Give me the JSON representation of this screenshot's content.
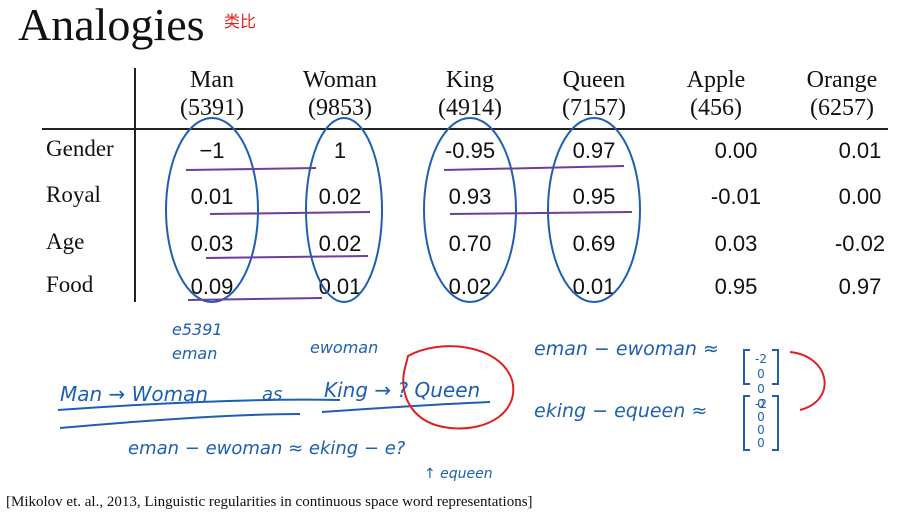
{
  "title": "Analogies",
  "title_note": "类比",
  "table": {
    "columns": [
      {
        "word": "Man",
        "index": "(5391)"
      },
      {
        "word": "Woman",
        "index": "(9853)"
      },
      {
        "word": "King",
        "index": "(4914)"
      },
      {
        "word": "Queen",
        "index": "(7157)"
      },
      {
        "word": "Apple",
        "index": "(456)"
      },
      {
        "word": "Orange",
        "index": "(6257)"
      }
    ],
    "rows": [
      {
        "label": "Gender",
        "values": [
          "−1",
          "1",
          "-0.95",
          "0.97",
          "0.00",
          "0.01"
        ]
      },
      {
        "label": "Royal",
        "values": [
          "0.01",
          "0.02",
          "0.93",
          "0.95",
          "-0.01",
          "0.00"
        ]
      },
      {
        "label": "Age",
        "values": [
          "0.03",
          "0.02",
          "0.70",
          "0.69",
          "0.03",
          "-0.02"
        ]
      },
      {
        "label": "Food",
        "values": [
          "0.09",
          "0.01",
          "0.02",
          "0.01",
          "0.95",
          "0.97"
        ]
      }
    ]
  },
  "handwriting": {
    "e5391": "e5391",
    "eman": "eman",
    "ewoman": "ewoman",
    "analogy_left": "Man → Woman",
    "analogy_as": "as",
    "analogy_right": "King → ? Queen",
    "diff_top": "eman − ewoman ≈",
    "diff_bottom": "eking − equeen ≈",
    "equation": "eman − ewoman ≈ eking − e?",
    "equation_note": "↑ equeen",
    "vector_top": [
      "-2",
      "0",
      "0",
      "0"
    ],
    "vector_bottom": [
      "-2",
      "0",
      "0",
      "0"
    ]
  },
  "citation": "[Mikolov et. al., 2013, Linguistic regularities in continuous space word representations]",
  "colors": {
    "ink_blue": "#1e5fb3",
    "ink_purple": "#6b3fa0",
    "ink_red": "#e02020"
  }
}
